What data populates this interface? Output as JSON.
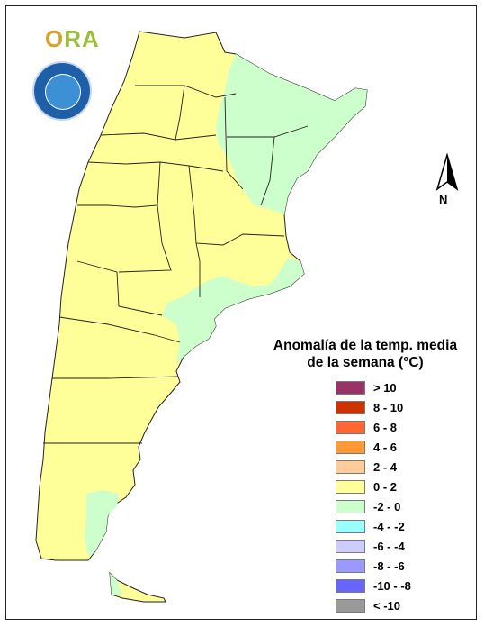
{
  "logo": {
    "text_o": "O",
    "text_rest": "RA"
  },
  "north_arrow": {
    "label": "N"
  },
  "legend": {
    "title_line1": "Anomalía de la temp. media",
    "title_line2": "de la semana (°C)",
    "items": [
      {
        "label": "> 10",
        "color": "#993366"
      },
      {
        "label": "8 - 10",
        "color": "#cc3300"
      },
      {
        "label": "6 - 8",
        "color": "#ff6633"
      },
      {
        "label": "4 - 6",
        "color": "#ff9933"
      },
      {
        "label": "2 - 4",
        "color": "#ffcc99"
      },
      {
        "label": "0 - 2",
        "color": "#ffff99"
      },
      {
        "label": "-2 - 0",
        "color": "#ccffcc"
      },
      {
        "label": "-4 - -2",
        "color": "#99ffff"
      },
      {
        "label": "-6 - -4",
        "color": "#ccccff"
      },
      {
        "label": "-8 - -6",
        "color": "#9999ff"
      },
      {
        "label": "-10 - -8",
        "color": "#6666ff"
      },
      {
        "label": "< -10",
        "color": "#999999"
      }
    ]
  },
  "map_colors": {
    "warm": "#ffff99",
    "cool": "#ccffcc",
    "border": "#222222"
  }
}
